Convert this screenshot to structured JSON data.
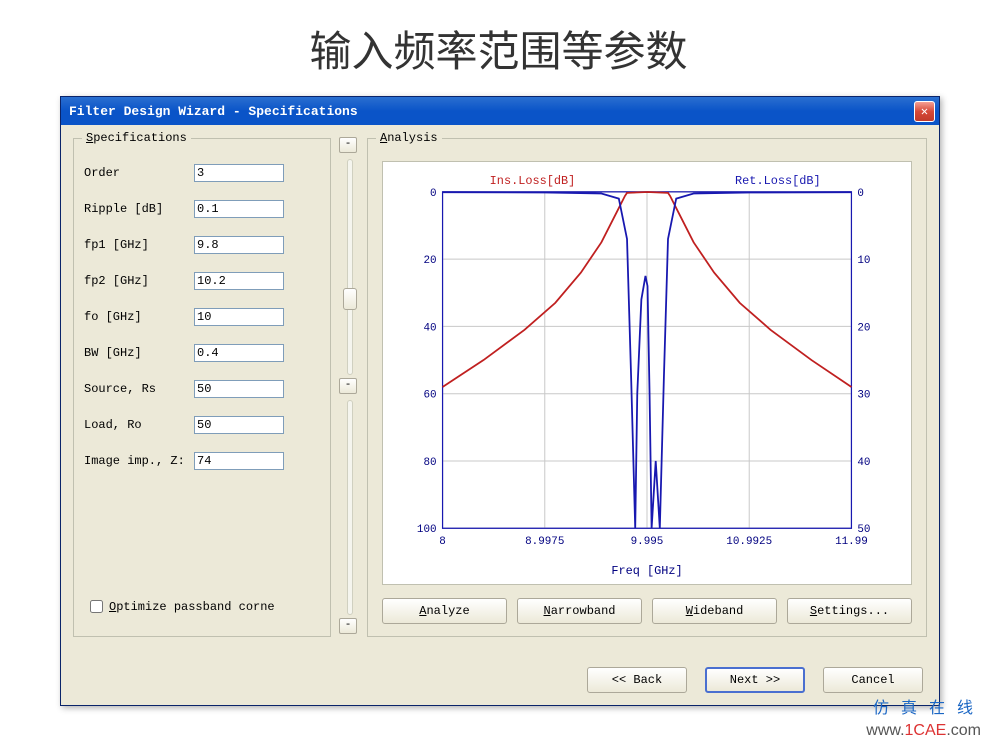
{
  "page_title": "输入频率范围等参数",
  "window_title": "Filter Design Wizard - Specifications",
  "specs_legend": "Specifications",
  "analysis_legend": "Analysis",
  "spec_fields": {
    "order": {
      "label": "Order",
      "value": "3"
    },
    "ripple": {
      "label": "Ripple [dB]",
      "value": "0.1"
    },
    "fp1": {
      "label": "fp1 [GHz]",
      "value": "9.8"
    },
    "fp2": {
      "label": "fp2 [GHz]",
      "value": "10.2"
    },
    "fo": {
      "label": "fo [GHz]",
      "value": "10"
    },
    "bw": {
      "label": "BW [GHz]",
      "value": "0.4"
    },
    "rs": {
      "label": "Source, Rs",
      "value": "50"
    },
    "ro": {
      "label": "Load, Ro",
      "value": "50"
    },
    "zimg": {
      "label": "Image imp., Z:",
      "value": "74"
    }
  },
  "optimize_label": "Optimize passband corne",
  "buttons": {
    "analyze": "Analyze",
    "narrowband": "Narrowband",
    "wideband": "Wideband",
    "settings": "Settings...",
    "back": "<< Back",
    "next": "Next >>",
    "cancel": "Cancel"
  },
  "chart": {
    "type": "line",
    "x_label": "Freq [GHz]",
    "series_labels": {
      "ins": "Ins.Loss[dB]",
      "ret": "Ret.Loss[dB]"
    },
    "colors": {
      "ins": "#c02020",
      "ret": "#1818b0",
      "grid": "#c8c8c8",
      "axis": "#1818b0",
      "label_ins": "#c02020",
      "label_ret": "#1818b0",
      "label_x": "#000080",
      "bg": "#ffffff"
    },
    "fonts": {
      "label_size": 12,
      "tick_size": 11
    },
    "x_ticks": [
      8,
      8.9975,
      9.995,
      10.9925,
      11.99
    ],
    "x_tick_labels": [
      "8",
      "8.9975",
      "9.995",
      "10.9925",
      "11.99"
    ],
    "y_left": {
      "min": 0,
      "max": 100,
      "ticks": [
        0,
        20,
        40,
        60,
        80,
        100
      ]
    },
    "y_right": {
      "min": 50,
      "max": 0,
      "ticks": [
        0,
        10,
        20,
        30,
        40,
        50
      ]
    },
    "ins_data": [
      [
        8,
        58
      ],
      [
        8.4,
        50
      ],
      [
        8.8,
        41
      ],
      [
        9.1,
        33
      ],
      [
        9.35,
        24
      ],
      [
        9.55,
        15
      ],
      [
        9.7,
        6
      ],
      [
        9.78,
        1.2
      ],
      [
        9.8,
        0.3
      ],
      [
        10,
        0.05
      ],
      [
        10.2,
        0.3
      ],
      [
        10.22,
        1.2
      ],
      [
        10.3,
        6
      ],
      [
        10.45,
        15
      ],
      [
        10.65,
        24
      ],
      [
        10.9,
        33
      ],
      [
        11.2,
        41
      ],
      [
        11.6,
        50
      ],
      [
        11.99,
        58
      ]
    ],
    "ret_data": [
      [
        8,
        0.1
      ],
      [
        9.0,
        0.2
      ],
      [
        9.55,
        0.5
      ],
      [
        9.72,
        2
      ],
      [
        9.8,
        14
      ],
      [
        9.84,
        55
      ],
      [
        9.88,
        100
      ],
      [
        9.9,
        60
      ],
      [
        9.94,
        32
      ],
      [
        9.98,
        25
      ],
      [
        10.0,
        28
      ],
      [
        10.02,
        60
      ],
      [
        10.04,
        100
      ],
      [
        10.08,
        80
      ],
      [
        10.12,
        100
      ],
      [
        10.16,
        55
      ],
      [
        10.2,
        14
      ],
      [
        10.28,
        2
      ],
      [
        10.45,
        0.5
      ],
      [
        11.0,
        0.2
      ],
      [
        11.99,
        0.1
      ]
    ],
    "xlim": [
      8,
      11.99
    ]
  },
  "watermark": {
    "cn": "仿 真 在 线",
    "url_1": "www.",
    "url_2": "1CAE",
    "url_3": ".com"
  }
}
